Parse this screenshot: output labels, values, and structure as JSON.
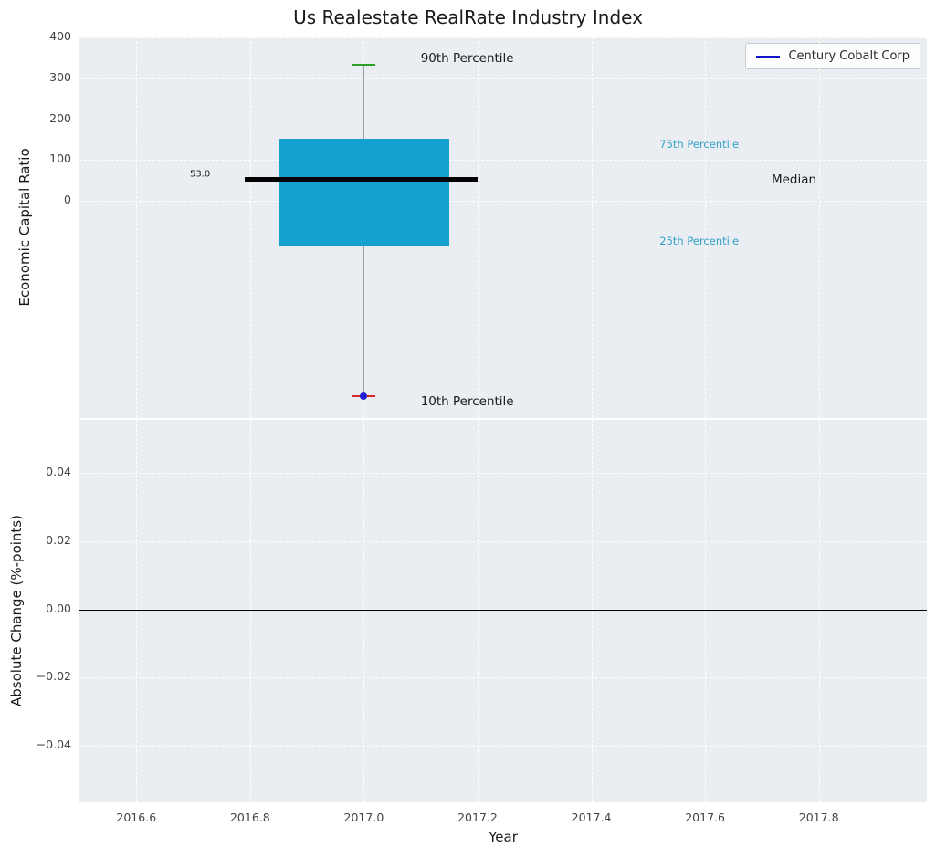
{
  "title": "Us Realestate RealRate Industry Index",
  "legend": {
    "label": "Century Cobalt Corp",
    "line_color": "#1515cb"
  },
  "chart_data": [
    {
      "type": "box",
      "title": "Us Realestate RealRate Industry Index",
      "ylabel": "Economic Capital Ratio",
      "xlim": [
        2016.5,
        2017.99
      ],
      "ylim": [
        -530,
        402
      ],
      "grid": true,
      "yticks": [
        {
          "v": 400,
          "label": "400"
        },
        {
          "v": 300,
          "label": "300"
        },
        {
          "v": 200,
          "label": "200"
        },
        {
          "v": 100,
          "label": "100"
        },
        {
          "v": 0,
          "label": "0"
        }
      ],
      "box": {
        "x": 2017.0,
        "p90": 333,
        "p75": 153,
        "median": 53.0,
        "p25": -111,
        "p10": -476,
        "box_x": [
          2016.85,
          2017.15
        ],
        "median_x": [
          2016.79,
          2017.2
        ],
        "cap_x": [
          2016.98,
          2017.02
        ]
      },
      "company_point": {
        "name": "Century Cobalt Corp",
        "x": 2017.0,
        "y": -476
      },
      "colors": {
        "box": "#16a0d0",
        "median": "#000000",
        "whisker": "#9aa0a6",
        "p90_cap": "#2ca02c",
        "p10_cap": "#d62728",
        "point": "#2020cd",
        "percentile_text": "#30a0c6"
      },
      "annotations": [
        {
          "text": "90th Percentile",
          "x": 2017.1,
          "y": 349,
          "color": "#1a1a1a",
          "size": 13.5,
          "align": "left"
        },
        {
          "text": "75th Percentile",
          "x": 2017.52,
          "y": 138,
          "color": "#30a0c6",
          "size": 11.5,
          "align": "left"
        },
        {
          "text": "Median",
          "x": 2017.717,
          "y": 51,
          "color": "#1a1a1a",
          "size": 13.5,
          "align": "left"
        },
        {
          "text": "25th Percentile",
          "x": 2017.52,
          "y": -98,
          "color": "#30a0c6",
          "size": 11.5,
          "align": "left"
        },
        {
          "text": "10th Percentile",
          "x": 2017.1,
          "y": -489,
          "color": "#1a1a1a",
          "size": 13.5,
          "align": "left"
        },
        {
          "text": "53.0",
          "x": 2016.73,
          "y": 66,
          "color": "#1a1a1a",
          "size": 10,
          "align": "right"
        }
      ]
    },
    {
      "type": "line",
      "ylabel": "Absolute Change (%-points)",
      "xlabel": "Year",
      "xlim": [
        2016.5,
        2017.99
      ],
      "ylim": [
        -0.0565,
        0.0555
      ],
      "grid": true,
      "series": [],
      "zero_line": 0.0,
      "yticks": [
        {
          "v": 0.04,
          "label": "0.04"
        },
        {
          "v": 0.02,
          "label": "0.02"
        },
        {
          "v": 0.0,
          "label": "0.00"
        },
        {
          "v": -0.02,
          "label": "−0.02"
        },
        {
          "v": -0.04,
          "label": "−0.04"
        }
      ],
      "xticks": [
        {
          "v": 2016.6,
          "label": "2016.6"
        },
        {
          "v": 2016.8,
          "label": "2016.8"
        },
        {
          "v": 2017.0,
          "label": "2017.0"
        },
        {
          "v": 2017.2,
          "label": "2017.2"
        },
        {
          "v": 2017.4,
          "label": "2017.4"
        },
        {
          "v": 2017.6,
          "label": "2017.6"
        },
        {
          "v": 2017.8,
          "label": "2017.8"
        }
      ]
    }
  ]
}
